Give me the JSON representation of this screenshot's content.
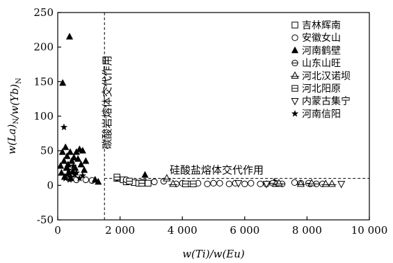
{
  "chart_data": {
    "type": "scatter",
    "xlabel": "w(Ti)/w(Eu)",
    "ylabel": "w(La)N/w(Yb)N",
    "xlim": [
      0,
      10000
    ],
    "ylim": [
      -50,
      250
    ],
    "xticks": [
      0,
      2000,
      4000,
      6000,
      8000,
      10000
    ],
    "xtick_labels": [
      "0",
      "2 000",
      "4 000",
      "6 000",
      "8 000",
      "10 000"
    ],
    "yticks": [
      -50,
      0,
      50,
      100,
      150,
      200,
      250
    ],
    "ytick_labels": [
      "-50",
      "0",
      "50",
      "100",
      "150",
      "200",
      "250"
    ],
    "grid": false,
    "legend_position": "top-right",
    "colors": {
      "ink": "#000000",
      "open_fill": "#ffffff"
    },
    "reference_lines": [
      {
        "orientation": "vertical",
        "value": 1500,
        "style": "dashed"
      },
      {
        "orientation": "horizontal",
        "value": 10,
        "from_x": 1500,
        "to_x": 10000,
        "style": "dashed"
      }
    ],
    "annotations": [
      {
        "text": "碳酸岩熔体交代作用",
        "x": 1700,
        "y": 120,
        "rotate": -90
      },
      {
        "text": "硅酸盐熔体交代作用",
        "x": 5100,
        "y": 17,
        "rotate": 0
      }
    ],
    "series": [
      {
        "name": "吉林辉南",
        "marker": "square-open",
        "points": [
          [
            1900,
            10
          ],
          [
            2100,
            8
          ],
          [
            2200,
            5
          ],
          [
            2450,
            4
          ],
          [
            2600,
            3
          ],
          [
            2750,
            4
          ],
          [
            2900,
            3
          ]
        ]
      },
      {
        "name": "安徽女山",
        "marker": "circle-open",
        "points": [
          [
            600,
            8
          ],
          [
            900,
            8
          ],
          [
            1100,
            7
          ],
          [
            1900,
            11
          ],
          [
            2200,
            8
          ],
          [
            3100,
            5
          ],
          [
            3400,
            6
          ],
          [
            3800,
            2
          ],
          [
            4000,
            3
          ],
          [
            4200,
            2
          ],
          [
            4500,
            3
          ],
          [
            4800,
            2
          ],
          [
            5000,
            3
          ],
          [
            5200,
            3
          ],
          [
            5500,
            2
          ],
          [
            5700,
            3
          ],
          [
            6000,
            2
          ],
          [
            6200,
            3
          ],
          [
            6500,
            2
          ],
          [
            7000,
            3
          ],
          [
            7600,
            4
          ],
          [
            7800,
            3
          ],
          [
            8100,
            2
          ],
          [
            8500,
            2
          ]
        ]
      },
      {
        "name": "河南鹤壁",
        "marker": "triangle-filled",
        "points": [
          [
            90,
            28
          ],
          [
            120,
            18
          ],
          [
            150,
            48
          ],
          [
            160,
            148
          ],
          [
            200,
            35
          ],
          [
            220,
            12
          ],
          [
            250,
            55
          ],
          [
            280,
            25
          ],
          [
            300,
            42
          ],
          [
            330,
            30
          ],
          [
            350,
            18
          ],
          [
            380,
            215
          ],
          [
            400,
            48
          ],
          [
            420,
            10
          ],
          [
            450,
            35
          ],
          [
            480,
            20
          ],
          [
            520,
            40
          ],
          [
            560,
            25
          ],
          [
            600,
            48
          ],
          [
            650,
            38
          ],
          [
            700,
            52
          ],
          [
            750,
            30
          ],
          [
            800,
            50
          ],
          [
            850,
            22
          ],
          [
            900,
            35
          ],
          [
            1200,
            8
          ],
          [
            1300,
            5
          ],
          [
            2800,
            15
          ],
          [
            6950,
            5
          ]
        ]
      },
      {
        "name": "山东山旺",
        "marker": "circle-half",
        "points": [
          [
            6700,
            2
          ],
          [
            6900,
            3
          ],
          [
            7200,
            2
          ],
          [
            8050,
            3
          ],
          [
            8300,
            2
          ]
        ]
      },
      {
        "name": "河北汉诺坝",
        "marker": "triangle-cross",
        "points": [
          [
            3500,
            10
          ],
          [
            3700,
            2
          ],
          [
            7000,
            2
          ],
          [
            7100,
            3
          ],
          [
            7800,
            2
          ],
          [
            8150,
            3
          ],
          [
            8600,
            2
          ],
          [
            8800,
            2
          ]
        ]
      },
      {
        "name": "河北阳原",
        "marker": "square-half",
        "points": [
          [
            1900,
            12
          ],
          [
            2300,
            6
          ],
          [
            2700,
            3
          ],
          [
            4100,
            2
          ],
          [
            4350,
            2
          ]
        ]
      },
      {
        "name": "内蒙古集宁",
        "marker": "triangle-down-open",
        "points": [
          [
            5800,
            3
          ],
          [
            6700,
            2
          ],
          [
            9100,
            2
          ]
        ]
      },
      {
        "name": "河南信阳",
        "marker": "star",
        "points": [
          [
            200,
            84
          ],
          [
            250,
            10
          ],
          [
            300,
            15
          ],
          [
            350,
            22
          ],
          [
            380,
            8
          ],
          [
            420,
            12
          ],
          [
            500,
            28
          ],
          [
            550,
            15
          ],
          [
            600,
            18
          ],
          [
            700,
            10
          ],
          [
            800,
            14
          ]
        ]
      }
    ]
  }
}
